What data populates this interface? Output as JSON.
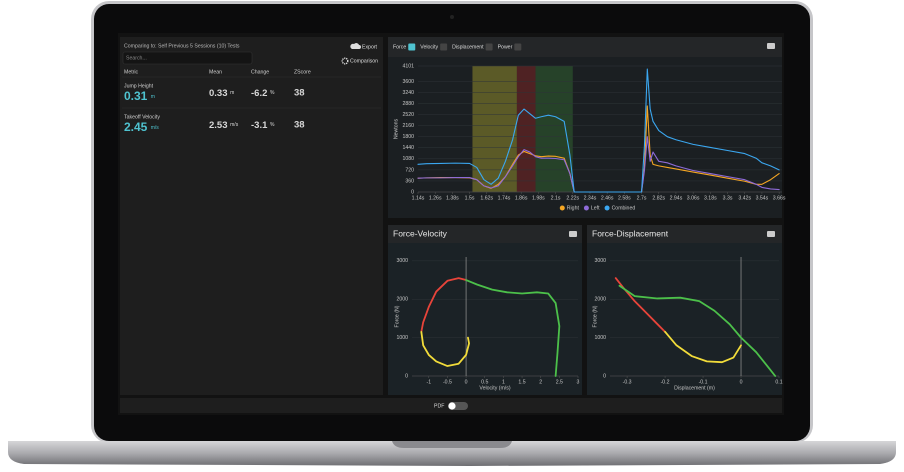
{
  "header": {
    "comparison": "Comparing to: Self Previous 5 Sessions (10) Tests",
    "export": "Export",
    "search_placeholder": "Search...",
    "comparison_button": "Comparison"
  },
  "table": {
    "columns": [
      "Metric",
      "Mean",
      "Change",
      "ZScore"
    ],
    "rows": [
      {
        "metric": "Jump Height",
        "value": 0.31,
        "unit": "m",
        "mean": 0.33,
        "mean_unit": "m",
        "change": -6.2,
        "change_unit": "%",
        "zscore": 38
      },
      {
        "metric": "Takeoff Velocity",
        "value": 2.45,
        "unit": "m/s",
        "mean": 2.53,
        "mean_unit": "m/s",
        "change": -3.1,
        "change_unit": "%",
        "zscore": 38
      }
    ]
  },
  "tabs": [
    "Force",
    "Velocity",
    "Displacement",
    "Power"
  ],
  "chart_data": [
    {
      "type": "line",
      "y_label": "Newtons",
      "x": [
        1.14,
        1.2,
        1.3,
        1.4,
        1.5,
        1.55,
        1.6,
        1.65,
        1.7,
        1.75,
        1.8,
        1.84,
        1.88,
        1.92,
        1.96,
        2.0,
        2.05,
        2.1,
        2.16,
        2.2,
        2.23,
        2.3,
        2.5,
        2.7,
        2.72,
        2.74,
        2.76,
        2.78,
        2.82,
        2.88,
        2.94,
        3.06,
        3.18,
        3.3,
        3.42,
        3.5,
        3.54,
        3.6,
        3.66
      ],
      "series": [
        {
          "name": "Right",
          "color": "#f5a623",
          "values": [
            450,
            460,
            470,
            470,
            460,
            400,
            200,
            120,
            250,
            500,
            900,
            1200,
            1320,
            1250,
            1180,
            1150,
            1170,
            1160,
            1100,
            600,
            0,
            0,
            0,
            0,
            800,
            2800,
            1200,
            900,
            850,
            800,
            750,
            650,
            550,
            450,
            350,
            250,
            250,
            400,
            600
          ]
        },
        {
          "name": "Left",
          "color": "#8e6bd8",
          "values": [
            450,
            460,
            460,
            470,
            470,
            400,
            200,
            130,
            200,
            500,
            850,
            1150,
            1380,
            1300,
            1150,
            1100,
            1100,
            1090,
            1050,
            600,
            0,
            0,
            0,
            0,
            700,
            1800,
            1000,
            1300,
            1000,
            950,
            850,
            700,
            600,
            500,
            400,
            250,
            150,
            100,
            80
          ]
        },
        {
          "name": "Combined",
          "color": "#3ba7f0",
          "values": [
            900,
            920,
            930,
            940,
            930,
            800,
            400,
            250,
            450,
            1000,
            1700,
            2500,
            2700,
            2550,
            2400,
            2450,
            2500,
            2450,
            2300,
            1200,
            0,
            0,
            0,
            0,
            1500,
            4000,
            2700,
            2300,
            2000,
            1800,
            1700,
            1550,
            1450,
            1350,
            1250,
            1100,
            950,
            850,
            720
          ]
        }
      ],
      "phases": [
        {
          "color": "#8f8a2c",
          "start": 1.52,
          "end": 1.83
        },
        {
          "color": "#7a2424",
          "start": 1.83,
          "end": 1.96
        },
        {
          "color": "#2f5e2f",
          "start": 1.96,
          "end": 2.22
        }
      ],
      "xlim": [
        1.14,
        3.68
      ],
      "xticks": [
        {
          "value": 1.14,
          "label": "1.14s"
        },
        {
          "value": 1.26,
          "label": "1.26s"
        },
        {
          "value": 1.38,
          "label": "1.38s"
        },
        {
          "value": 1.5,
          "label": "1.5s"
        },
        {
          "value": 1.62,
          "label": "1.62s"
        },
        {
          "value": 1.74,
          "label": "1.74s"
        },
        {
          "value": 1.86,
          "label": "1.86s"
        },
        {
          "value": 1.98,
          "label": "1.98s"
        },
        {
          "value": 2.1,
          "label": "2.1s"
        },
        {
          "value": 2.22,
          "label": "2.22s"
        },
        {
          "value": 2.34,
          "label": "2.34s"
        },
        {
          "value": 2.46,
          "label": "2.46s"
        },
        {
          "value": 2.58,
          "label": "2.58s"
        },
        {
          "value": 2.7,
          "label": "2.7s"
        },
        {
          "value": 2.82,
          "label": "2.82s"
        },
        {
          "value": 2.94,
          "label": "2.94s"
        },
        {
          "value": 3.06,
          "label": "3.06s"
        },
        {
          "value": 3.18,
          "label": "3.18s"
        },
        {
          "value": 3.3,
          "label": "3.3s"
        },
        {
          "value": 3.42,
          "label": "3.42s"
        },
        {
          "value": 3.54,
          "label": "3.54s"
        },
        {
          "value": 3.66,
          "label": "3.66s"
        }
      ],
      "ylim": [
        0,
        4101
      ],
      "yticks": [
        0,
        360,
        720,
        1080,
        1440,
        1800,
        2160,
        2520,
        2880,
        3240,
        3600,
        4101
      ],
      "grid": true
    },
    {
      "type": "line",
      "title": "Force-Velocity",
      "x_label": "Velocity (m/s)",
      "y_label": "Force (N)",
      "series": [
        {
          "color": "#e8443a",
          "x": [
            0,
            -0.2,
            -0.5,
            -0.8,
            -1.0,
            -1.15,
            -1.2
          ],
          "values": [
            2500,
            2550,
            2480,
            2200,
            1800,
            1400,
            1150
          ]
        },
        {
          "color": "#f2dc3a",
          "x": [
            -1.2,
            -1.15,
            -1.0,
            -0.8,
            -0.5,
            -0.2,
            0.0,
            0.08,
            0.05
          ],
          "values": [
            1150,
            800,
            550,
            380,
            260,
            320,
            550,
            850,
            1000
          ]
        },
        {
          "color": "#4cc04a",
          "x": [
            0,
            0.3,
            0.7,
            1.1,
            1.5,
            1.9,
            2.2,
            2.4,
            2.5,
            2.45,
            2.4
          ],
          "values": [
            2500,
            2380,
            2250,
            2180,
            2150,
            2180,
            2150,
            1900,
            1300,
            600,
            0
          ]
        }
      ],
      "xlim": [
        -1.45,
        3.0
      ],
      "xticks": [
        -1,
        -0.5,
        0,
        0.5,
        1,
        1.5,
        2,
        2.5,
        3
      ],
      "ylim": [
        0,
        3100
      ],
      "yticks": [
        0,
        1000,
        2000,
        3000
      ],
      "grid": true
    },
    {
      "type": "line",
      "title": "Force-Displacement",
      "x_label": "Displacement (m)",
      "y_label": "Force (N)",
      "series": [
        {
          "color": "#e8443a",
          "x": [
            -0.33,
            -0.31,
            -0.28,
            -0.25,
            -0.22,
            -0.2
          ],
          "values": [
            2550,
            2300,
            1950,
            1650,
            1350,
            1150
          ]
        },
        {
          "color": "#f2dc3a",
          "x": [
            -0.2,
            -0.17,
            -0.13,
            -0.09,
            -0.05,
            -0.02,
            0.0
          ],
          "values": [
            1150,
            800,
            520,
            380,
            360,
            480,
            800
          ]
        },
        {
          "color": "#4cc04a",
          "x": [
            -0.32,
            -0.28,
            -0.22,
            -0.16,
            -0.11,
            -0.07,
            -0.03,
            0.0,
            0.04,
            0.07,
            0.09
          ],
          "values": [
            2350,
            2080,
            2020,
            2040,
            1950,
            1700,
            1350,
            1000,
            620,
            250,
            0
          ]
        }
      ],
      "xlim": [
        -0.345,
        0.1
      ],
      "xticks": [
        -0.3,
        -0.2,
        -0.1,
        0,
        0.1
      ],
      "ylim": [
        0,
        3100
      ],
      "yticks": [
        0,
        1000,
        2000,
        3000
      ],
      "grid": true
    }
  ],
  "footer": {
    "pdf": "PDF"
  }
}
